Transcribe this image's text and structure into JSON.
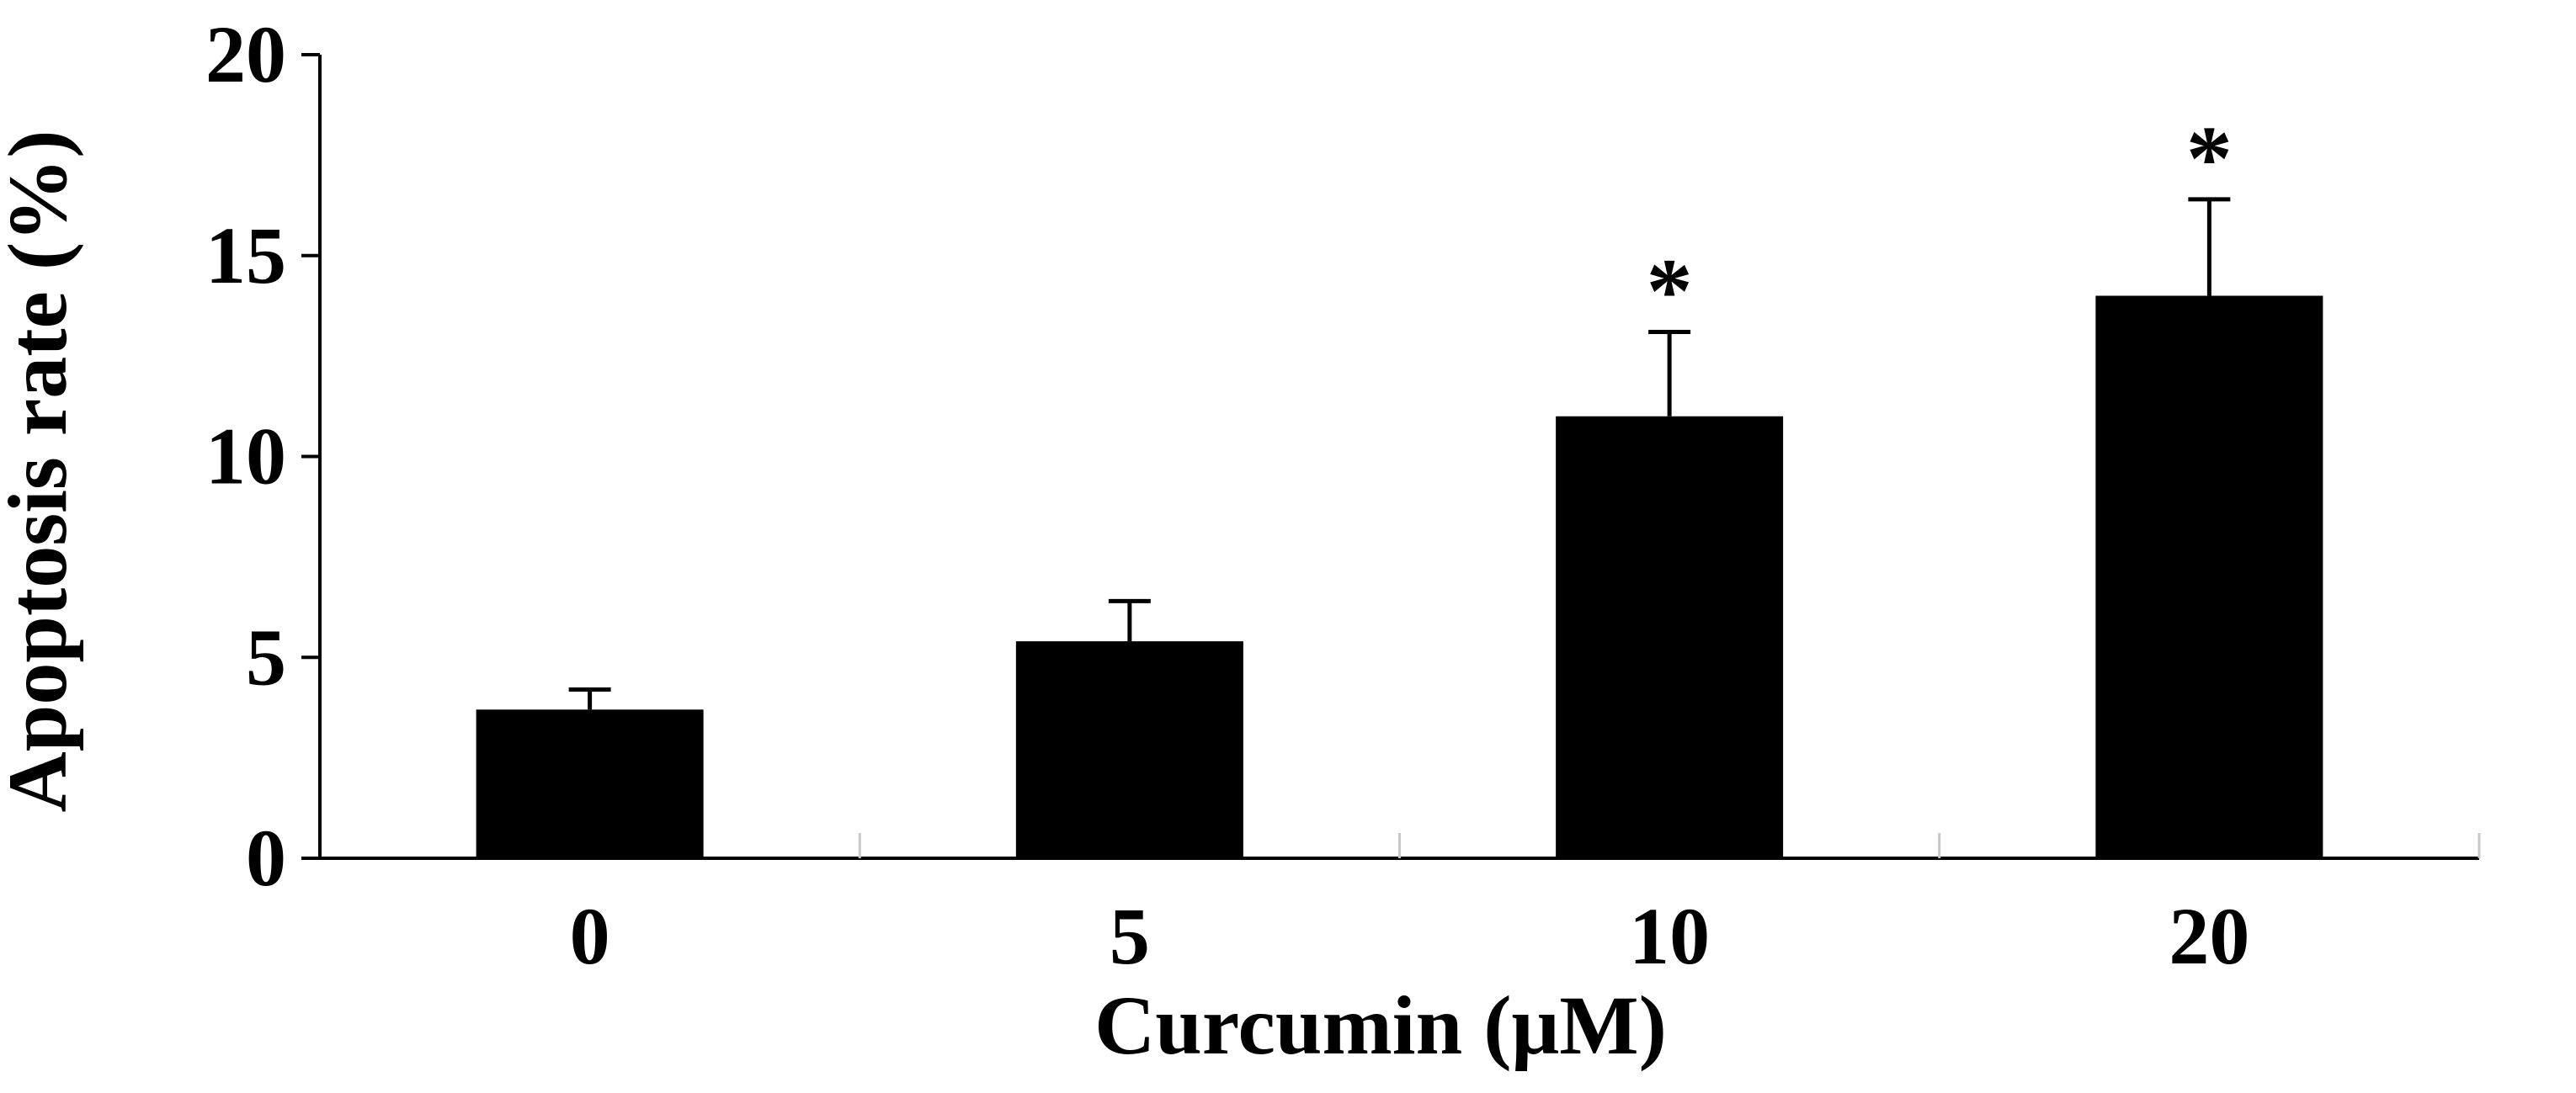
{
  "chart_data": {
    "type": "bar",
    "categories": [
      "0",
      "5",
      "10",
      "20"
    ],
    "values": [
      3.7,
      5.4,
      11.0,
      14.0
    ],
    "errors": [
      0.5,
      1.0,
      2.1,
      2.4
    ],
    "annotations": [
      "",
      "",
      "*",
      "*"
    ],
    "xlabel": "Curcumin (μM)",
    "ylabel": "Apoptosis rate (%)",
    "ylim": [
      0,
      20
    ],
    "yticks": [
      0,
      5,
      10,
      15,
      20
    ],
    "grid": false,
    "bar_color": "#000000"
  }
}
